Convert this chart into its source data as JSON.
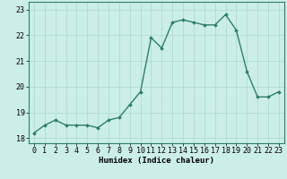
{
  "x": [
    0,
    1,
    2,
    3,
    4,
    5,
    6,
    7,
    8,
    9,
    10,
    11,
    12,
    13,
    14,
    15,
    16,
    17,
    18,
    19,
    20,
    21,
    22,
    23
  ],
  "y": [
    18.2,
    18.5,
    18.7,
    18.5,
    18.5,
    18.5,
    18.4,
    18.7,
    18.8,
    19.3,
    19.8,
    21.9,
    21.5,
    22.5,
    22.6,
    22.5,
    22.4,
    22.4,
    22.8,
    22.2,
    20.6,
    19.6,
    19.6,
    19.8
  ],
  "line_color": "#2e7d6e",
  "marker": "D",
  "marker_size": 2.0,
  "line_width": 1.0,
  "bg_color": "#cceee8",
  "grid_color": "#aad8d0",
  "xlabel": "Humidex (Indice chaleur)",
  "xlim": [
    -0.5,
    23.5
  ],
  "ylim": [
    17.8,
    23.3
  ],
  "yticks": [
    18,
    19,
    20,
    21,
    22,
    23
  ],
  "xticks": [
    0,
    1,
    2,
    3,
    4,
    5,
    6,
    7,
    8,
    9,
    10,
    11,
    12,
    13,
    14,
    15,
    16,
    17,
    18,
    19,
    20,
    21,
    22,
    23
  ],
  "xlabel_fontsize": 6.5,
  "tick_fontsize": 6.0,
  "axis_color": "#2e7d6e"
}
